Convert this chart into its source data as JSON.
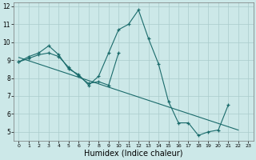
{
  "title": "",
  "xlabel": "Humidex (Indice chaleur)",
  "bg_color": "#cce8e8",
  "grid_color": "#aacccc",
  "line_color": "#1a6b6b",
  "xlim": [
    -0.5,
    23.5
  ],
  "ylim": [
    4.5,
    12.2
  ],
  "xticks": [
    0,
    1,
    2,
    3,
    4,
    5,
    6,
    7,
    8,
    9,
    10,
    11,
    12,
    13,
    14,
    15,
    16,
    17,
    18,
    19,
    20,
    21,
    22,
    23
  ],
  "yticks": [
    5,
    6,
    7,
    8,
    9,
    10,
    11,
    12
  ],
  "curve1_x": [
    0,
    1,
    2,
    3,
    4,
    5,
    6,
    7,
    8,
    9,
    10,
    11,
    12,
    13,
    14,
    15,
    16,
    17,
    18,
    19,
    20,
    21,
    22
  ],
  "curve1_y": [
    8.9,
    9.2,
    9.4,
    9.8,
    9.3,
    8.5,
    8.2,
    7.6,
    8.1,
    9.4,
    10.7,
    11.0,
    11.8,
    10.2,
    8.8,
    6.7,
    5.5,
    5.5,
    4.8,
    5.0,
    5.1,
    6.5,
    null
  ],
  "curve2_x": [
    0,
    1,
    2,
    3,
    4,
    5,
    6,
    7,
    8,
    9,
    10,
    11,
    12,
    13,
    14,
    15,
    16,
    17,
    18,
    19,
    20,
    21,
    22,
    23
  ],
  "curve2_y": [
    8.9,
    9.1,
    9.3,
    9.4,
    9.2,
    8.6,
    8.1,
    7.7,
    7.8,
    7.6,
    9.4,
    null,
    null,
    null,
    null,
    null,
    null,
    null,
    null,
    null,
    null,
    null,
    null,
    null
  ],
  "trend_x": [
    0,
    22
  ],
  "trend_y": [
    9.15,
    5.1
  ],
  "font_size_xlabel": 7,
  "marker_size": 3.0,
  "line_width": 0.8
}
